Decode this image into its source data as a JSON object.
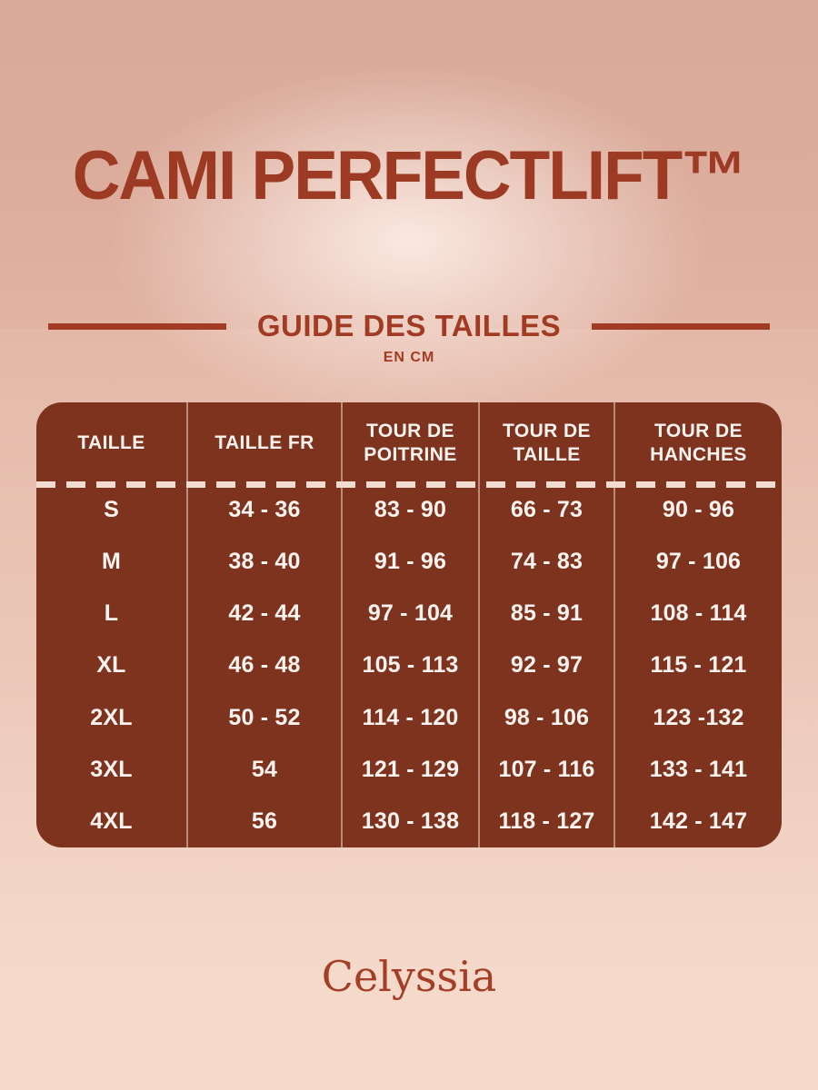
{
  "page": {
    "title": "CAMI PERFECTLIFT™",
    "size_guide": {
      "heading": "GUIDE DES TAILLES",
      "unit": "EN CM"
    },
    "brand": "Celyssia",
    "colors": {
      "accent": "#A23B24",
      "title_text": "#9D3A23",
      "table_background": "#7E331E",
      "table_text": "#FBF3EF",
      "background_top": "#D8A999",
      "background_bottom": "#F5D9CB"
    }
  },
  "size_table": {
    "headers": [
      "TAILLE",
      "TAILLE FR",
      "TOUR DE POITRINE",
      "TOUR DE TAILLE",
      "TOUR DE HANCHES"
    ],
    "rows": [
      [
        "S",
        "34 - 36",
        "83 - 90",
        "66 - 73",
        "90 - 96"
      ],
      [
        "M",
        "38 - 40",
        "91 - 96",
        "74 - 83",
        "97 - 106"
      ],
      [
        "L",
        "42 - 44",
        "97 - 104",
        "85 - 91",
        "108 - 114"
      ],
      [
        "XL",
        "46 - 48",
        "105 - 113",
        "92 - 97",
        "115 - 121"
      ],
      [
        "2XL",
        "50 - 52",
        "114 - 120",
        "98 - 106",
        "123 -132"
      ],
      [
        "3XL",
        "54",
        "121 - 129",
        "107 - 116",
        "133 - 141"
      ],
      [
        "4XL",
        "56",
        "130 - 138",
        "118 - 127",
        "142 - 147"
      ]
    ]
  }
}
